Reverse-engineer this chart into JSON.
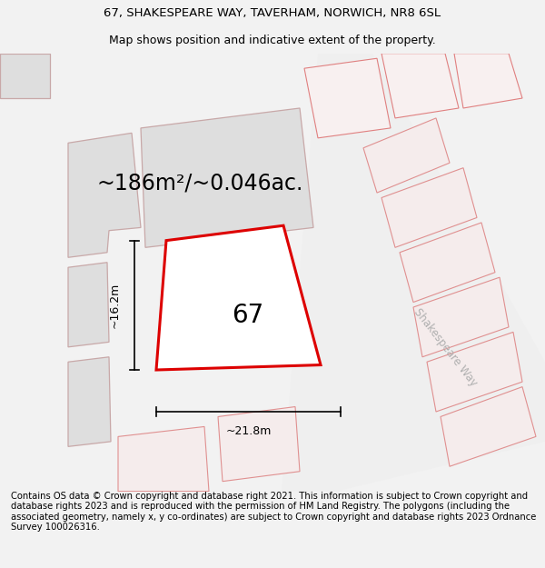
{
  "title_line1": "67, SHAKESPEARE WAY, TAVERHAM, NORWICH, NR8 6SL",
  "title_line2": "Map shows position and indicative extent of the property.",
  "area_label": "~186m²/~0.046ac.",
  "property_number": "67",
  "width_label": "~21.8m",
  "height_label": "~16.2m",
  "street_label": "Shakespeare Way",
  "footer_text": "Contains OS data © Crown copyright and database right 2021. This information is subject to Crown copyright and database rights 2023 and is reproduced with the permission of HM Land Registry. The polygons (including the associated geometry, namely x, y co-ordinates) are subject to Crown copyright and database rights 2023 Ordnance Survey 100026316.",
  "bg_color": "#f2f2f2",
  "map_bg_color": "#ffffff",
  "property_edge": "#dd0000",
  "property_fill": "#ffffff",
  "neighbor_fill": "#dedede",
  "neighbor_edge": "#c8a8a8",
  "dim_line_color": "#000000",
  "street_label_color": "#b0b0b0",
  "title_fontsize": 9.5,
  "footer_fontsize": 7.2,
  "area_fontsize": 17,
  "number_fontsize": 20
}
